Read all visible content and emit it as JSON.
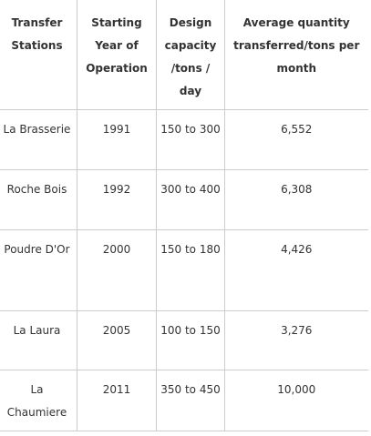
{
  "table": {
    "headers": [
      "Transfer Stations",
      "Starting Year of Operation",
      "Design capacity /tons / day",
      "Average quantity transferred/tons per month"
    ],
    "rows": [
      {
        "station": "La Brasserie",
        "year": "1991",
        "capacity": "150 to 300",
        "average": "6,552"
      },
      {
        "station": "Roche Bois",
        "year": "1992",
        "capacity": "300 to 400",
        "average": "6,308"
      },
      {
        "station": "Poudre D'Or",
        "year": "2000",
        "capacity": "150 to 180",
        "average": "4,426"
      },
      {
        "station": "La Laura",
        "year": "2005",
        "capacity": "100 to 150",
        "average": "3,276"
      },
      {
        "station": "La Chaumiere",
        "year": "2011",
        "capacity": "350 to 450",
        "average": "10,000"
      }
    ]
  }
}
